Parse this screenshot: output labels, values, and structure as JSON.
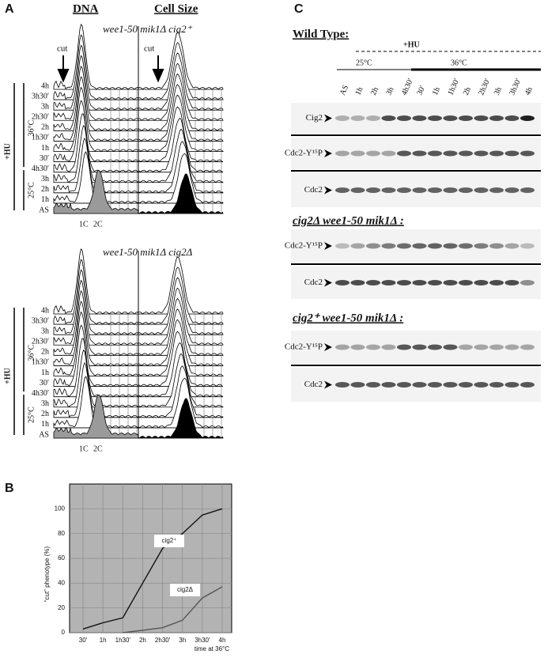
{
  "panel_a": {
    "letter": "A",
    "dna": "DNA",
    "cell_size": "Cell Size",
    "cut": "cut",
    "top": {
      "genotype": "wee1-50 mik1Δ cig2⁺",
      "times": [
        "4h",
        "3h30′",
        "3h",
        "2h30′",
        "2h",
        "1h30′",
        "1h",
        "30′",
        "4h30′",
        "3h",
        "2h",
        "1h",
        "AS"
      ]
    },
    "bottom": {
      "genotype": "wee1-50 mik1Δ cig2Δ",
      "times": [
        "4h",
        "3h30′",
        "3h",
        "2h30′",
        "2h",
        "1h30′",
        "1h",
        "30′",
        "4h30′",
        "3h",
        "2h",
        "1h",
        "AS"
      ]
    },
    "hot": "36°C",
    "cold": "25°C",
    "hu": "+HU",
    "one_c": "1C",
    "two_c": "2C"
  },
  "chart_data": {
    "type": "line",
    "letter": "B",
    "ylabel": "“cut” phenotype (%)",
    "xlabel": "time at 36°C",
    "categories": [
      "30′",
      "1h",
      "1h30′",
      "2h",
      "2h30′",
      "3h",
      "3h30′",
      "4h"
    ],
    "ylim": [
      0,
      120
    ],
    "yticks": [
      0,
      20,
      40,
      60,
      80,
      100
    ],
    "grid": true,
    "series": [
      {
        "name": "cig2⁺",
        "color": "#111111",
        "values": [
          3,
          8,
          12,
          40,
          68,
          80,
          95,
          100
        ]
      },
      {
        "name": "cig2Δ",
        "color": "#555555",
        "values": [
          null,
          null,
          0,
          2,
          4,
          10,
          28,
          37
        ]
      }
    ]
  },
  "panel_c": {
    "letter": "C",
    "wild_type": "Wild Type:",
    "hu": "+HU",
    "cold": "25°C",
    "hot": "36°C",
    "lanes": [
      "AS",
      "1h",
      "2h",
      "3h",
      "4h30′",
      "30′",
      "1h",
      "1h30′",
      "2h",
      "2h30′",
      "3h",
      "3h30′",
      "4h"
    ],
    "wt_rows": [
      "Cig2",
      "Cdc2-Y¹⁵P",
      "Cdc2"
    ],
    "mutant1": {
      "title": "cig2Δ wee1-50 mik1Δ :",
      "rows": [
        "Cdc2-Y¹⁵P",
        "Cdc2"
      ]
    },
    "mutant2": {
      "title": "cig2⁺ wee1-50 mik1Δ :",
      "rows": [
        "Cdc2-Y¹⁵P",
        "Cdc2"
      ]
    }
  }
}
